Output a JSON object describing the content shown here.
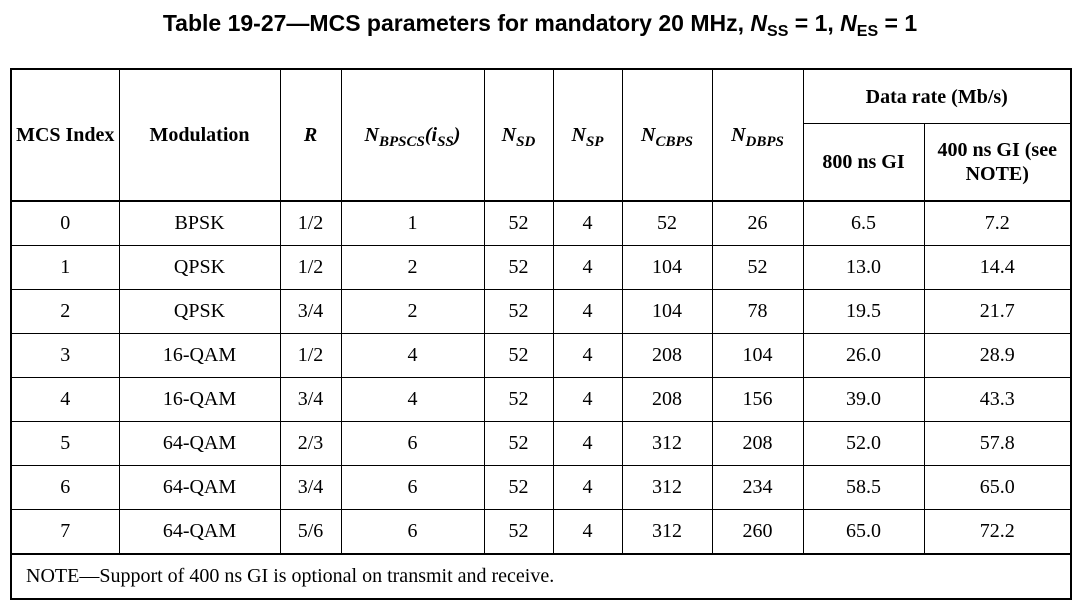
{
  "title": {
    "prefix": "Table 19-27—MCS parameters for mandatory 20 MHz, ",
    "nss_letter": "N",
    "nss_sub": "SS",
    "nss_value": " = 1, ",
    "nes_letter": "N",
    "nes_sub": "ES",
    "nes_value": " = 1"
  },
  "headers": {
    "mcs_index": "MCS Index",
    "modulation": "Modulation",
    "r": "R",
    "nbpscs_main": "N",
    "nbpscs_sub": "BPSCS",
    "nbpscs_arg_open": "(i",
    "nbpscs_arg_sub": "SS",
    "nbpscs_arg_close": ")",
    "nsd_main": "N",
    "nsd_sub": "SD",
    "nsp_main": "N",
    "nsp_sub": "SP",
    "ncbps_main": "N",
    "ncbps_sub": "CBPS",
    "ndbps_main": "N",
    "ndbps_sub": "DBPS",
    "data_rate": "Data rate (Mb/s)",
    "gi800": "800 ns GI",
    "gi400": "400 ns GI (see NOTE)"
  },
  "rows": [
    [
      "0",
      "BPSK",
      "1/2",
      "1",
      "52",
      "4",
      "52",
      "26",
      "6.5",
      "7.2"
    ],
    [
      "1",
      "QPSK",
      "1/2",
      "2",
      "52",
      "4",
      "104",
      "52",
      "13.0",
      "14.4"
    ],
    [
      "2",
      "QPSK",
      "3/4",
      "2",
      "52",
      "4",
      "104",
      "78",
      "19.5",
      "21.7"
    ],
    [
      "3",
      "16-QAM",
      "1/2",
      "4",
      "52",
      "4",
      "208",
      "104",
      "26.0",
      "28.9"
    ],
    [
      "4",
      "16-QAM",
      "3/4",
      "4",
      "52",
      "4",
      "208",
      "156",
      "39.0",
      "43.3"
    ],
    [
      "5",
      "64-QAM",
      "2/3",
      "6",
      "52",
      "4",
      "312",
      "208",
      "52.0",
      "57.8"
    ],
    [
      "6",
      "64-QAM",
      "3/4",
      "6",
      "52",
      "4",
      "312",
      "234",
      "58.5",
      "65.0"
    ],
    [
      "7",
      "64-QAM",
      "5/6",
      "6",
      "52",
      "4",
      "312",
      "260",
      "65.0",
      "72.2"
    ]
  ],
  "note": "NOTE—Support of 400 ns GI is optional on transmit and receive."
}
